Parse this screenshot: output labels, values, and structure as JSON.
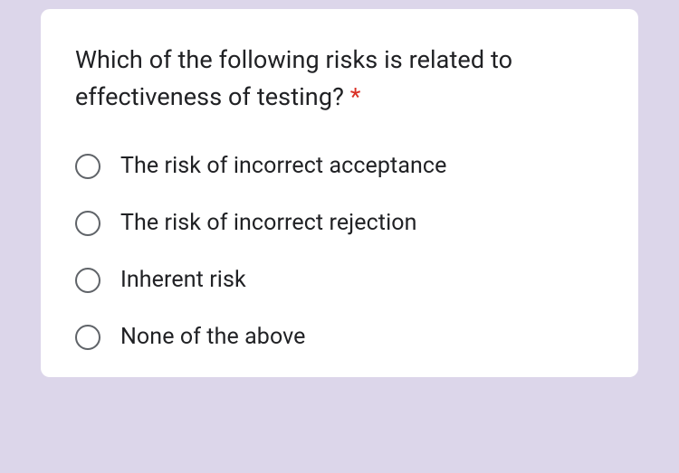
{
  "question": {
    "text": "Which of the following risks is related to effectiveness of testing? ",
    "required_marker": "*",
    "text_color": "#202124",
    "required_color": "#d93025",
    "font_size": 27
  },
  "options": [
    {
      "label": "The risk of incorrect acceptance",
      "selected": false
    },
    {
      "label": "The risk of incorrect rejection",
      "selected": false
    },
    {
      "label": "Inherent risk",
      "selected": false
    },
    {
      "label": "None of the above",
      "selected": false
    }
  ],
  "styling": {
    "background_color": "#dcd6ea",
    "card_background": "#ffffff",
    "radio_border_color": "#5f6368",
    "option_text_color": "#202124",
    "option_font_size": 25
  }
}
